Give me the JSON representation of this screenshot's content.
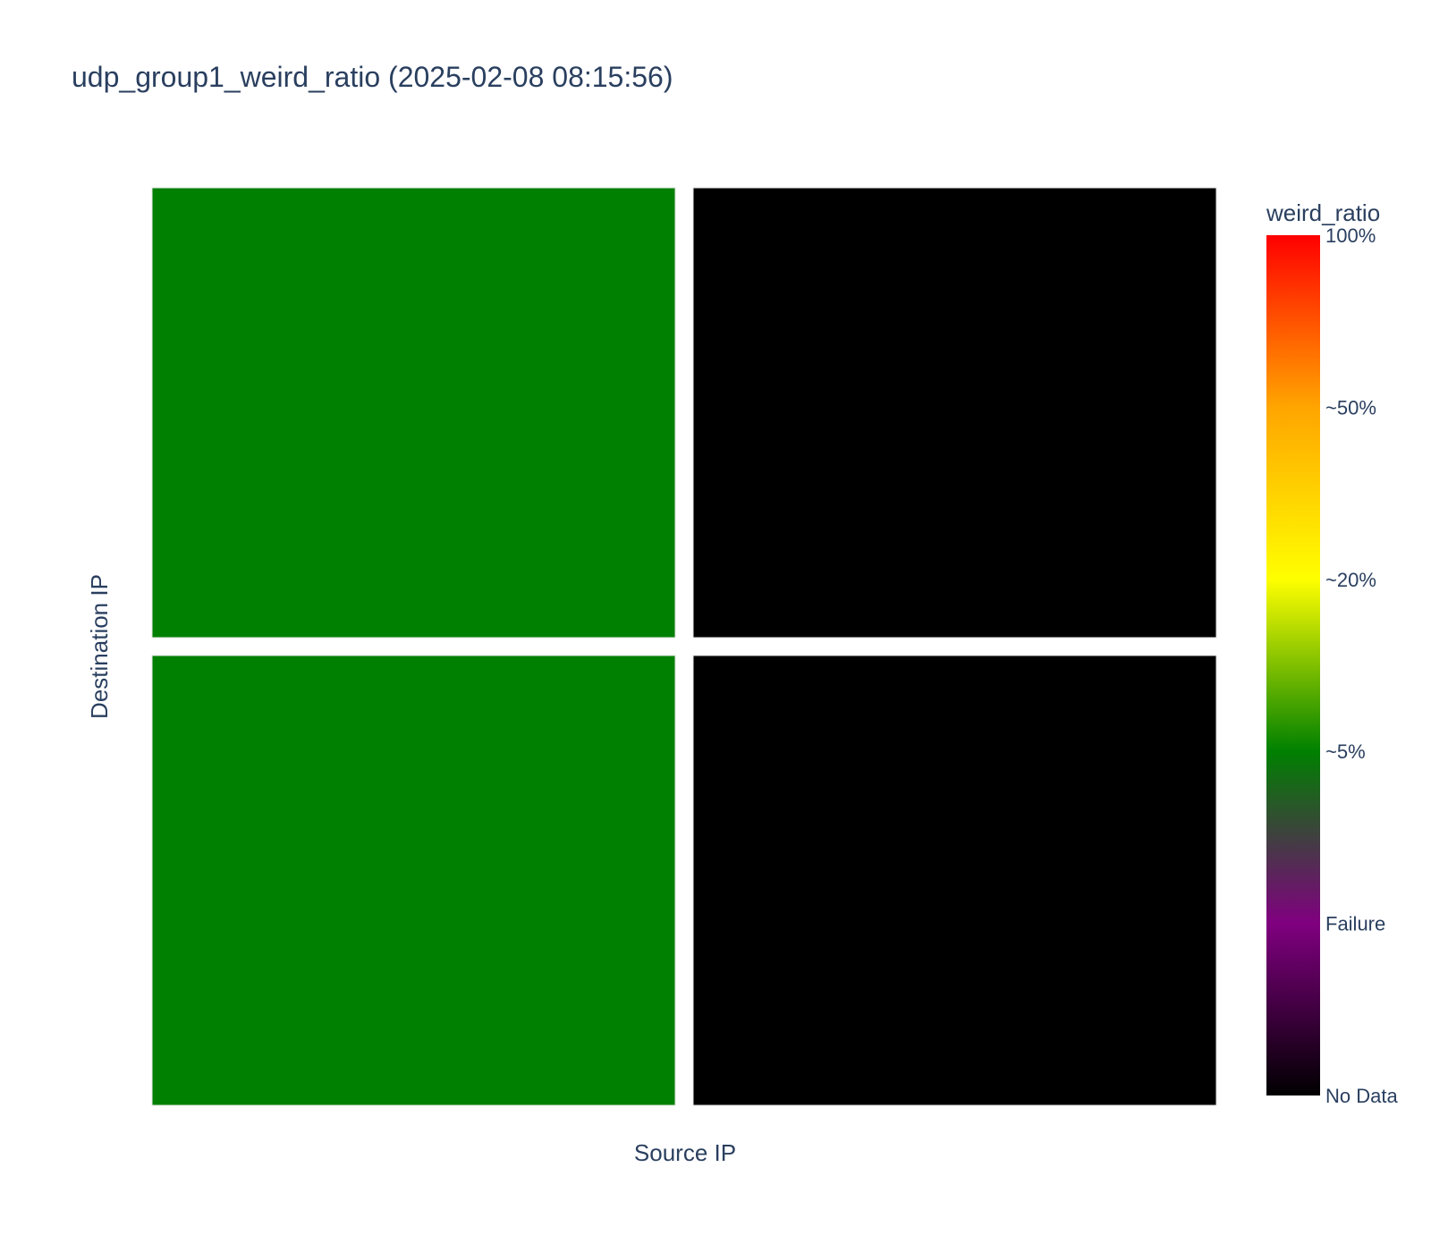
{
  "chart_data": {
    "type": "heatmap",
    "title": "udp_group1_weird_ratio (2025-02-08 08:15:56)",
    "xlabel": "Source IP",
    "ylabel": "Destination IP",
    "rows": 2,
    "cols": 2,
    "cells": [
      [
        {
          "status": "~5%",
          "color": "#008000"
        },
        {
          "status": "No Data",
          "color": "#000000"
        }
      ],
      [
        {
          "status": "~5%",
          "color": "#008000"
        },
        {
          "status": "No Data",
          "color": "#000000"
        }
      ]
    ],
    "colorbar": {
      "title": "weird_ratio",
      "ticks": [
        "No Data",
        "Failure",
        "~5%",
        "~20%",
        "~50%",
        "100%"
      ],
      "colorscale": [
        [
          0.0,
          "#000000"
        ],
        [
          0.2,
          "#800080"
        ],
        [
          0.4,
          "#008000"
        ],
        [
          0.6,
          "#ffff00"
        ],
        [
          0.8,
          "#ffa500"
        ],
        [
          1.0,
          "#ff0000"
        ]
      ]
    }
  }
}
